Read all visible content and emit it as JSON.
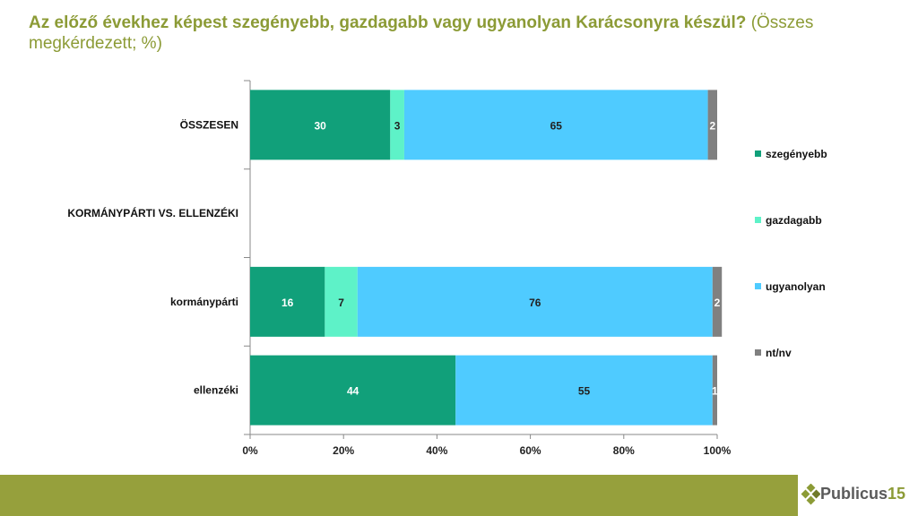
{
  "title": {
    "main": "Az előző évekhez képest szegényebb, gazdagabb vagy ugyanolyan Karácsonyra készül?",
    "sub": "(Összes megkérdezett; %)"
  },
  "colors": {
    "title": "#8c9b36",
    "footer": "#96a03c",
    "szegenyebb": "#11a07a",
    "gazdagabb": "#5ef2c8",
    "ugyanolyan": "#4fcbff",
    "ntnv": "#808080"
  },
  "logo": {
    "text": "Publicus",
    "number": "15",
    "icon": "diamond-cluster-icon"
  },
  "chart_data": {
    "type": "bar",
    "orientation": "horizontal",
    "stacked": "percent",
    "categories": [
      "ÖSSZESEN",
      "KORMÁNYPÁRTI VS. ELLENZÉKI",
      "kormánypárti",
      "ellenzéki"
    ],
    "series": [
      {
        "name": "szegényebb",
        "values": [
          30,
          null,
          16,
          44
        ]
      },
      {
        "name": "gazdagabb",
        "values": [
          3,
          null,
          7,
          0
        ]
      },
      {
        "name": "ugyanolyan",
        "values": [
          65,
          null,
          76,
          55
        ]
      },
      {
        "name": "nt/nv",
        "values": [
          2,
          null,
          2,
          1
        ]
      }
    ],
    "xlim": [
      0,
      100
    ],
    "xticks": [
      "0%",
      "20%",
      "40%",
      "60%",
      "80%",
      "100%"
    ],
    "legend": "right",
    "grid": false
  }
}
